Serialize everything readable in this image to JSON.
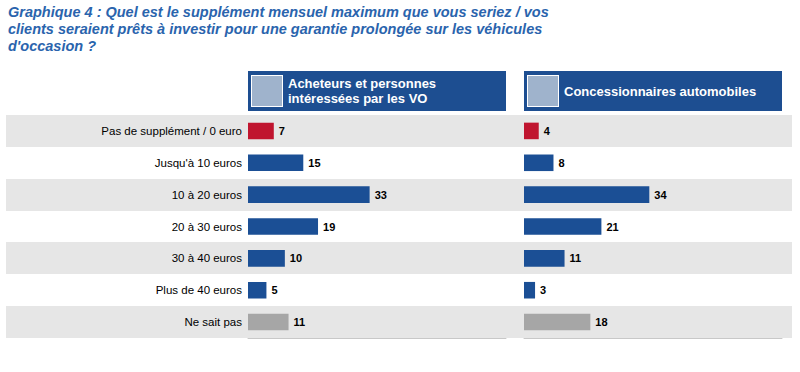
{
  "title": "Graphique 4 : Quel est le supplément mensuel maximum que vous seriez / vos clients seraient prêts à investir pour une garantie prolongée sur les véhicules d'occasion ?",
  "chart_data": [
    {
      "type": "bar",
      "title": "Acheteurs et personnes intéressées par les VO",
      "orientation": "horizontal",
      "categories": [
        "Pas de supplément / 0 euro",
        "Jusqu'à 10 euros",
        "10 à 20 euros",
        "20 à 30 euros",
        "30 à 40 euros",
        "Plus de 40 euros",
        "Ne sait pas"
      ],
      "values": [
        7,
        15,
        33,
        19,
        10,
        5,
        11
      ],
      "colors": [
        "#c0152f",
        "#1b4f95",
        "#1b4f95",
        "#1b4f95",
        "#1b4f95",
        "#1b4f95",
        "#a6a6a6"
      ],
      "xlim": [
        0,
        70
      ],
      "data_labels": true,
      "tick_labels": "y",
      "grid": false
    },
    {
      "type": "bar",
      "title": "Concessionnaires automobiles",
      "orientation": "horizontal",
      "categories": [
        "Pas de supplément / 0 euro",
        "Jusqu'à 10 euros",
        "10 à 20 euros",
        "20 à 30 euros",
        "30 à 40 euros",
        "Plus de 40 euros",
        "Ne sait pas"
      ],
      "values": [
        4,
        8,
        34,
        21,
        11,
        3,
        18
      ],
      "colors": [
        "#c0152f",
        "#1b4f95",
        "#1b4f95",
        "#1b4f95",
        "#1b4f95",
        "#1b4f95",
        "#a6a6a6"
      ],
      "xlim": [
        0,
        70
      ],
      "data_labels": true,
      "tick_labels": false,
      "grid": false
    }
  ]
}
